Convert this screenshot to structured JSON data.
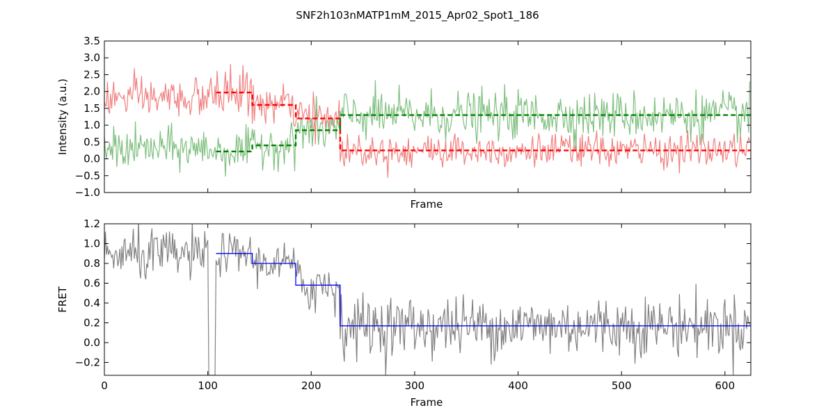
{
  "figure_title": "SNF2h103nMATP1mM_2015_Apr02_Spot1_186",
  "chart_data": [
    {
      "type": "line",
      "title": "",
      "xlabel": "Frame",
      "ylabel": "Intensity (a.u.)",
      "xlim": [
        0,
        625
      ],
      "ylim": [
        -1.0,
        3.5
      ],
      "x_ticks_labeled": false,
      "y_ticks": [
        -1.0,
        -0.5,
        0.0,
        0.5,
        1.0,
        1.5,
        2.0,
        2.5,
        3.0,
        3.5
      ],
      "y_tick_labels": [
        "−1.0",
        "−0.5",
        "0.0",
        "0.5",
        "1.0",
        "1.5",
        "2.0",
        "2.5",
        "3.0",
        "3.5"
      ],
      "grid": false,
      "raw_traces": [
        {
          "color": "#f08080",
          "frames": [
            0,
            625
          ],
          "segments": [
            {
              "start": 0,
              "end": 108,
              "mean": 1.8,
              "noise": 0.3
            },
            {
              "start": 108,
              "end": 143,
              "mean": 2.0,
              "noise": 0.35
            },
            {
              "start": 143,
              "end": 185,
              "mean": 1.6,
              "noise": 0.3
            },
            {
              "start": 185,
              "end": 228,
              "mean": 1.2,
              "noise": 0.3
            },
            {
              "start": 228,
              "end": 625,
              "mean": 0.25,
              "noise": 0.25
            }
          ]
        },
        {
          "color": "#7fbf7f",
          "frames": [
            0,
            625
          ],
          "segments": [
            {
              "start": 0,
              "end": 108,
              "mean": 0.3,
              "noise": 0.3
            },
            {
              "start": 108,
              "end": 143,
              "mean": 0.22,
              "noise": 0.3
            },
            {
              "start": 143,
              "end": 185,
              "mean": 0.4,
              "noise": 0.3
            },
            {
              "start": 185,
              "end": 228,
              "mean": 0.85,
              "noise": 0.35
            },
            {
              "start": 228,
              "end": 625,
              "mean": 1.3,
              "noise": 0.35
            }
          ]
        }
      ],
      "fit_steps": [
        {
          "color": "#ff0000",
          "style": "dashed",
          "steps": [
            {
              "start": 108,
              "end": 143,
              "value": 1.97
            },
            {
              "start": 143,
              "end": 185,
              "value": 1.6
            },
            {
              "start": 185,
              "end": 228,
              "value": 1.2
            },
            {
              "start": 228,
              "end": 625,
              "value": 0.25
            }
          ]
        },
        {
          "color": "#008000",
          "style": "dashed",
          "steps": [
            {
              "start": 108,
              "end": 143,
              "value": 0.22
            },
            {
              "start": 143,
              "end": 185,
              "value": 0.4
            },
            {
              "start": 185,
              "end": 228,
              "value": 0.85
            },
            {
              "start": 228,
              "end": 625,
              "value": 1.3
            }
          ]
        }
      ]
    },
    {
      "type": "line",
      "title": "",
      "xlabel": "Frame",
      "ylabel": "FRET",
      "xlim": [
        0,
        625
      ],
      "ylim": [
        -0.33,
        1.2
      ],
      "x_ticks": [
        0,
        100,
        200,
        300,
        400,
        500,
        600
      ],
      "x_tick_labels": [
        "0",
        "100",
        "200",
        "300",
        "400",
        "500",
        "600"
      ],
      "y_ticks": [
        -0.2,
        0.0,
        0.2,
        0.4,
        0.6,
        0.8,
        1.0,
        1.2
      ],
      "y_tick_labels": [
        "−0.2",
        "0.0",
        "0.2",
        "0.4",
        "0.6",
        "0.8",
        "1.0",
        "1.2"
      ],
      "grid": false,
      "raw_traces": [
        {
          "color": "#808080",
          "frames": [
            0,
            625
          ],
          "dropout": {
            "start": 101,
            "end": 108,
            "value": -0.33
          },
          "segments": [
            {
              "start": 0,
              "end": 101,
              "mean": 0.88,
              "noise": 0.13
            },
            {
              "start": 101,
              "end": 108,
              "mean": -0.33,
              "noise": 0.0
            },
            {
              "start": 108,
              "end": 143,
              "mean": 0.9,
              "noise": 0.1
            },
            {
              "start": 143,
              "end": 185,
              "mean": 0.8,
              "noise": 0.1
            },
            {
              "start": 185,
              "end": 228,
              "mean": 0.58,
              "noise": 0.15
            },
            {
              "start": 228,
              "end": 625,
              "mean": 0.17,
              "noise": 0.15
            }
          ]
        }
      ],
      "fit_steps": [
        {
          "color": "#0000ff",
          "style": "solid",
          "steps": [
            {
              "start": 108,
              "end": 143,
              "value": 0.9
            },
            {
              "start": 143,
              "end": 185,
              "value": 0.8
            },
            {
              "start": 185,
              "end": 228,
              "value": 0.58
            },
            {
              "start": 228,
              "end": 625,
              "value": 0.17
            }
          ]
        }
      ]
    }
  ]
}
